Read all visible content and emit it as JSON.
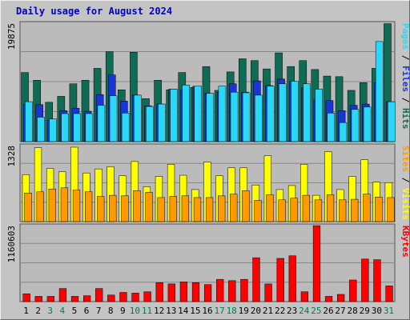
{
  "title": "Daily usage for August 2024",
  "colors": {
    "hits": "#0f6b54",
    "files": "#1a35d6",
    "pages": "#29d8f6",
    "visits": "#ffff00",
    "sites": "#ff9b00",
    "kbytes": "#ff0000",
    "weekday_label": "#000000",
    "weekend_label": "#007b52",
    "slash": "#000000",
    "axis_max": "#000000"
  },
  "chart_data": [
    {
      "type": "bar",
      "title": "",
      "panel": "top",
      "ymax_label": "19875",
      "ylim": [
        0,
        19875
      ],
      "categories": [
        "1",
        "2",
        "3",
        "4",
        "5",
        "6",
        "7",
        "8",
        "9",
        "10",
        "11",
        "12",
        "13",
        "14",
        "15",
        "16",
        "17",
        "18",
        "19",
        "20",
        "21",
        "22",
        "23",
        "24",
        "25",
        "26",
        "27",
        "28",
        "29",
        "30",
        "31"
      ],
      "legend": [
        "Pages",
        "Files",
        "Hits"
      ],
      "series": [
        {
          "name": "Hits",
          "values": [
            11600,
            10300,
            6600,
            7600,
            9700,
            10300,
            12300,
            15100,
            8700,
            15000,
            7200,
            10300,
            8700,
            11600,
            9100,
            12600,
            8600,
            11700,
            13900,
            13600,
            12200,
            14900,
            12600,
            13600,
            12100,
            11000,
            10900,
            8600,
            9900,
            12300,
            19800
          ]
        },
        {
          "name": "Files",
          "values": [
            6200,
            6200,
            3600,
            5200,
            5600,
            5100,
            7900,
            11200,
            6800,
            7800,
            6000,
            6300,
            8800,
            8700,
            9300,
            8100,
            8300,
            9700,
            8300,
            10200,
            9400,
            10500,
            10100,
            9000,
            7000,
            6900,
            5200,
            6100,
            6300,
            9900,
            6700
          ]
        },
        {
          "name": "Pages",
          "values": [
            6700,
            4100,
            3800,
            4700,
            4700,
            4700,
            6100,
            7700,
            4800,
            7800,
            5900,
            6300,
            8800,
            9500,
            9300,
            8100,
            9300,
            8300,
            8200,
            7800,
            9300,
            9700,
            10100,
            9700,
            8800,
            4800,
            3200,
            5400,
            5800,
            16800,
            6700
          ]
        }
      ],
      "axis_label_text": "Pages / Files / Hits"
    },
    {
      "type": "bar",
      "title": "",
      "panel": "middle",
      "ymax_label": "1328",
      "ylim": [
        0,
        1328
      ],
      "categories": [
        "1",
        "2",
        "3",
        "4",
        "5",
        "6",
        "7",
        "8",
        "9",
        "10",
        "11",
        "12",
        "13",
        "14",
        "15",
        "16",
        "17",
        "18",
        "19",
        "20",
        "21",
        "22",
        "23",
        "24",
        "25",
        "26",
        "27",
        "28",
        "29",
        "30",
        "31"
      ],
      "legend": [
        "Sites",
        "Visits"
      ],
      "series": [
        {
          "name": "Visits",
          "values": [
            820,
            1290,
            930,
            870,
            1300,
            850,
            920,
            960,
            800,
            1050,
            610,
            790,
            1000,
            810,
            560,
            1040,
            800,
            940,
            940,
            640,
            1150,
            560,
            630,
            1000,
            460,
            1220,
            560,
            790,
            1080,
            690,
            680
          ]
        },
        {
          "name": "Sites",
          "values": [
            500,
            520,
            570,
            590,
            550,
            520,
            440,
            460,
            450,
            540,
            510,
            420,
            440,
            450,
            420,
            420,
            450,
            480,
            540,
            370,
            470,
            380,
            410,
            460,
            380,
            470,
            380,
            390,
            480,
            430,
            420
          ]
        }
      ],
      "axis_label_text": "Sites / Visits"
    },
    {
      "type": "bar",
      "title": "",
      "panel": "bottom",
      "ymax_label": "1160603",
      "ylim": [
        0,
        1160603
      ],
      "categories": [
        "1",
        "2",
        "3",
        "4",
        "5",
        "6",
        "7",
        "8",
        "9",
        "10",
        "11",
        "12",
        "13",
        "14",
        "15",
        "16",
        "17",
        "18",
        "19",
        "20",
        "21",
        "22",
        "23",
        "24",
        "25",
        "26",
        "27",
        "28",
        "29",
        "30",
        "31"
      ],
      "legend": [
        "KBytes"
      ],
      "series": [
        {
          "name": "KBytes",
          "values": [
            120000,
            80000,
            80000,
            200000,
            80000,
            90000,
            200000,
            100000,
            140000,
            130000,
            150000,
            290000,
            270000,
            300000,
            290000,
            260000,
            340000,
            320000,
            340000,
            670000,
            270000,
            660000,
            700000,
            150000,
            1160000,
            80000,
            110000,
            330000,
            650000,
            640000,
            240000
          ]
        }
      ],
      "axis_label_text": "KBytes"
    }
  ],
  "x_labels": [
    "1",
    "2",
    "3",
    "4",
    "5",
    "6",
    "7",
    "8",
    "9",
    "10",
    "11",
    "12",
    "13",
    "14",
    "15",
    "16",
    "17",
    "18",
    "19",
    "20",
    "21",
    "22",
    "23",
    "24",
    "25",
    "26",
    "27",
    "28",
    "29",
    "30",
    "31"
  ],
  "weekend_days": [
    "3",
    "4",
    "10",
    "11",
    "17",
    "18",
    "24",
    "25",
    "31"
  ]
}
